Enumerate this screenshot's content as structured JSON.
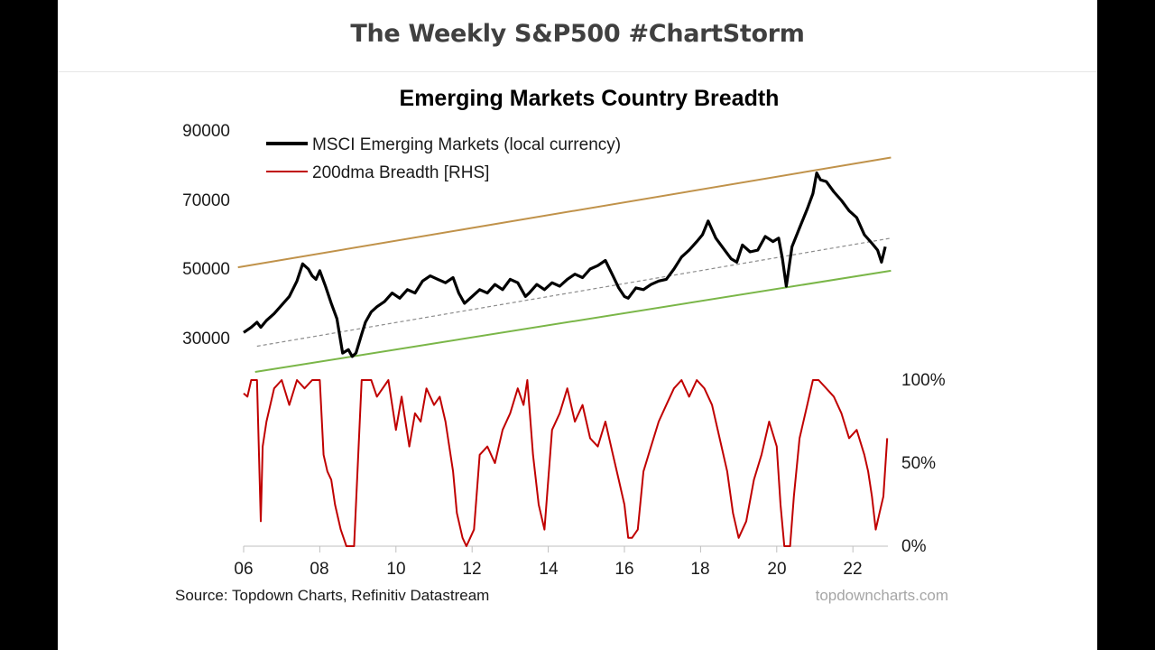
{
  "slide": {
    "header_title": "The Weekly S&P500 #ChartStorm"
  },
  "colors": {
    "msci": "#000000",
    "breadth": "#c00000",
    "upper_channel": "#c0924a",
    "lower_channel": "#7ab648",
    "trend": "#8c8c8c"
  },
  "chart_data": {
    "type": "line",
    "title": "Emerging Markets Country Breadth",
    "x_ticks": [
      "06",
      "08",
      "10",
      "12",
      "14",
      "16",
      "18",
      "20",
      "22"
    ],
    "x_tick_years": [
      2006,
      2008,
      2010,
      2012,
      2014,
      2016,
      2018,
      2020,
      2022
    ],
    "x_range": [
      2006,
      2022.9
    ],
    "left_axis": {
      "ticks": [
        "30000",
        "50000",
        "70000",
        "90000"
      ],
      "tick_values": [
        30000,
        50000,
        70000,
        90000
      ],
      "range": [
        20000,
        90000
      ]
    },
    "right_axis": {
      "ticks": [
        "0%",
        "50%",
        "100%"
      ],
      "tick_values": [
        0,
        50,
        100
      ],
      "range": [
        0,
        100
      ]
    },
    "legend": [
      "MSCI Emerging Markets (local currency)",
      "200dma Breadth [RHS]"
    ],
    "series": [
      {
        "name": "MSCI Emerging Markets (local currency)",
        "axis": "left",
        "x": [
          2006.0,
          2006.2,
          2006.35,
          2006.45,
          2006.6,
          2006.8,
          2007.0,
          2007.2,
          2007.4,
          2007.55,
          2007.7,
          2007.8,
          2007.9,
          2008.0,
          2008.15,
          2008.3,
          2008.45,
          2008.6,
          2008.75,
          2008.85,
          2008.95,
          2009.1,
          2009.2,
          2009.35,
          2009.5,
          2009.7,
          2009.9,
          2010.1,
          2010.3,
          2010.5,
          2010.7,
          2010.9,
          2011.1,
          2011.3,
          2011.5,
          2011.65,
          2011.8,
          2012.0,
          2012.2,
          2012.4,
          2012.6,
          2012.8,
          2013.0,
          2013.2,
          2013.4,
          2013.5,
          2013.7,
          2013.9,
          2014.1,
          2014.3,
          2014.5,
          2014.7,
          2014.9,
          2015.1,
          2015.3,
          2015.5,
          2015.7,
          2015.85,
          2016.0,
          2016.1,
          2016.3,
          2016.5,
          2016.7,
          2016.9,
          2017.1,
          2017.3,
          2017.5,
          2017.7,
          2017.9,
          2018.05,
          2018.2,
          2018.4,
          2018.6,
          2018.8,
          2018.95,
          2019.1,
          2019.3,
          2019.5,
          2019.7,
          2019.9,
          2020.05,
          2020.15,
          2020.25,
          2020.4,
          2020.6,
          2020.8,
          2020.95,
          2021.05,
          2021.15,
          2021.3,
          2021.5,
          2021.7,
          2021.9,
          2022.1,
          2022.3,
          2022.5,
          2022.65,
          2022.75,
          2022.85
        ],
        "values": [
          31500,
          33000,
          34500,
          33000,
          35000,
          37000,
          39500,
          42000,
          46500,
          51500,
          50000,
          48000,
          47000,
          49500,
          45000,
          40000,
          35500,
          25500,
          26500,
          24500,
          25500,
          31000,
          34500,
          37500,
          39000,
          40500,
          43000,
          41500,
          44000,
          43000,
          46500,
          48000,
          47000,
          46000,
          47500,
          43000,
          40000,
          42000,
          44000,
          43000,
          45500,
          44000,
          47000,
          46000,
          42000,
          43000,
          45500,
          44000,
          46000,
          45000,
          47000,
          48500,
          47500,
          50000,
          51000,
          52500,
          48000,
          44500,
          42000,
          41500,
          44500,
          44000,
          45500,
          46500,
          47000,
          50000,
          53500,
          55500,
          58000,
          60000,
          64000,
          59000,
          56000,
          53000,
          52000,
          57000,
          55000,
          55500,
          59500,
          58000,
          59000,
          53000,
          45000,
          56500,
          62000,
          67500,
          72000,
          78000,
          76000,
          75500,
          72500,
          70000,
          67000,
          65000,
          60000,
          57500,
          55500,
          52000,
          56500
        ]
      },
      {
        "name": "200dma Breadth [RHS]",
        "axis": "right",
        "x": [
          2006.0,
          2006.1,
          2006.2,
          2006.35,
          2006.45,
          2006.5,
          2006.6,
          2006.8,
          2007.0,
          2007.2,
          2007.4,
          2007.6,
          2007.8,
          2008.0,
          2008.1,
          2008.2,
          2008.3,
          2008.4,
          2008.55,
          2008.7,
          2008.8,
          2008.9,
          2009.1,
          2009.2,
          2009.35,
          2009.5,
          2009.8,
          2010.0,
          2010.15,
          2010.35,
          2010.5,
          2010.65,
          2010.8,
          2011.0,
          2011.15,
          2011.3,
          2011.5,
          2011.6,
          2011.75,
          2011.85,
          2011.95,
          2012.05,
          2012.2,
          2012.4,
          2012.6,
          2012.8,
          2013.0,
          2013.2,
          2013.35,
          2013.45,
          2013.6,
          2013.75,
          2013.9,
          2014.1,
          2014.3,
          2014.5,
          2014.7,
          2014.9,
          2015.1,
          2015.3,
          2015.5,
          2015.7,
          2015.85,
          2016.0,
          2016.1,
          2016.2,
          2016.35,
          2016.5,
          2016.7,
          2016.9,
          2017.1,
          2017.3,
          2017.5,
          2017.7,
          2017.9,
          2018.1,
          2018.3,
          2018.5,
          2018.7,
          2018.85,
          2019.0,
          2019.2,
          2019.4,
          2019.6,
          2019.8,
          2020.0,
          2020.1,
          2020.2,
          2020.35,
          2020.45,
          2020.6,
          2020.8,
          2020.95,
          2021.1,
          2021.3,
          2021.5,
          2021.7,
          2021.9,
          2022.1,
          2022.3,
          2022.4,
          2022.5,
          2022.6,
          2022.7,
          2022.8,
          2022.9
        ],
        "values": [
          92,
          90,
          100,
          100,
          15,
          60,
          75,
          95,
          100,
          85,
          100,
          95,
          100,
          100,
          55,
          45,
          40,
          25,
          10,
          0,
          0,
          0,
          100,
          100,
          100,
          90,
          100,
          70,
          90,
          60,
          80,
          75,
          95,
          85,
          90,
          75,
          45,
          20,
          5,
          0,
          5,
          10,
          55,
          60,
          50,
          70,
          80,
          95,
          85,
          100,
          55,
          25,
          10,
          70,
          80,
          95,
          75,
          85,
          65,
          60,
          75,
          55,
          40,
          25,
          5,
          5,
          10,
          45,
          60,
          75,
          85,
          95,
          100,
          90,
          100,
          95,
          85,
          65,
          45,
          20,
          5,
          15,
          40,
          55,
          75,
          60,
          25,
          0,
          0,
          30,
          65,
          85,
          100,
          100,
          95,
          90,
          80,
          65,
          70,
          55,
          45,
          30,
          10,
          20,
          30,
          65
        ]
      }
    ],
    "trend_lines": [
      {
        "name": "upper channel",
        "x": [
          2005.85,
          2023.0
        ],
        "values": [
          50500,
          82500
        ]
      },
      {
        "name": "lower channel",
        "x": [
          2006.3,
          2023.0
        ],
        "values": [
          20000,
          49500
        ]
      },
      {
        "name": "trend",
        "x": [
          2006.35,
          2023.0
        ],
        "values": [
          27500,
          59000
        ]
      }
    ]
  },
  "footer": {
    "source": "Source: Topdown Charts, Refinitiv Datastream",
    "watermark": "topdowncharts.com"
  }
}
